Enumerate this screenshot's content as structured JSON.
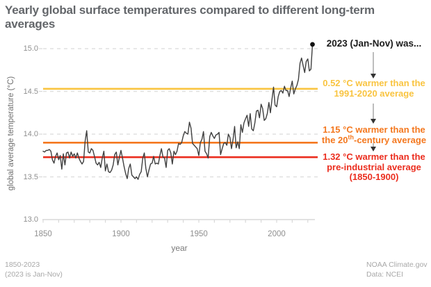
{
  "title": "Yearly global surface temperatures compared to different long-term averages",
  "colors": {
    "yellow": "#f9c440",
    "orange": "#f4781f",
    "red": "#eb2d1e",
    "data_line": "#3f3f3f",
    "end_dot": "#111111",
    "gridline": "#e0e0e0",
    "axis": "#d8d8d8",
    "arrow_shaft": "#999999",
    "arrow_head": "#333333"
  },
  "chart_data": {
    "type": "line",
    "title": "Yearly global surface temperatures compared to different long-term averages",
    "xlabel": "year",
    "ylabel": "global average temperature (°C)",
    "xlim": [
      1850,
      2023
    ],
    "ylim": [
      13.0,
      15.0
    ],
    "x_ticks": [
      1850,
      1900,
      1950,
      2000
    ],
    "x_minor_tick_step": 10,
    "y_ticks": [
      13.0,
      13.5,
      14.0,
      14.5,
      15.0
    ],
    "grid": "horizontal dashed",
    "series": [
      {
        "name": "yearly global average surface temperature",
        "x_start": 1850,
        "x_end": 2023,
        "x_step": 1,
        "values": [
          13.8,
          13.79,
          13.81,
          13.81,
          13.82,
          13.8,
          13.7,
          13.66,
          13.74,
          13.78,
          13.7,
          13.75,
          13.59,
          13.77,
          13.64,
          13.78,
          13.79,
          13.72,
          13.79,
          13.74,
          13.77,
          13.72,
          13.78,
          13.72,
          13.68,
          13.65,
          13.68,
          13.92,
          14.04,
          13.79,
          13.78,
          13.83,
          13.81,
          13.74,
          13.66,
          13.64,
          13.67,
          13.61,
          13.72,
          13.8,
          13.57,
          13.65,
          13.56,
          13.55,
          13.58,
          13.64,
          13.76,
          13.79,
          13.64,
          13.73,
          13.81,
          13.72,
          13.62,
          13.54,
          13.48,
          13.6,
          13.65,
          13.52,
          13.5,
          13.48,
          13.5,
          13.47,
          13.53,
          13.56,
          13.72,
          13.78,
          13.6,
          13.5,
          13.58,
          13.65,
          13.66,
          13.74,
          13.65,
          13.66,
          13.65,
          13.75,
          13.83,
          13.73,
          13.72,
          13.61,
          13.81,
          13.83,
          13.78,
          13.65,
          13.8,
          13.76,
          13.8,
          13.89,
          13.88,
          13.9,
          13.98,
          14.03,
          14.01,
          14.0,
          14.14,
          14.07,
          13.89,
          13.87,
          13.85,
          13.83,
          13.75,
          13.9,
          13.94,
          14.03,
          13.8,
          13.77,
          13.72,
          13.97,
          14.02,
          13.98,
          13.95,
          13.99,
          14.0,
          14.02,
          13.76,
          13.83,
          13.89,
          13.9,
          13.87,
          14.0,
          13.96,
          13.83,
          13.94,
          14.09,
          13.84,
          13.91,
          13.83,
          14.11,
          14.02,
          14.13,
          14.18,
          14.22,
          14.09,
          14.24,
          14.06,
          14.04,
          14.13,
          14.27,
          14.28,
          14.19,
          14.35,
          14.3,
          14.16,
          14.18,
          14.24,
          14.37,
          14.25,
          14.41,
          14.55,
          14.34,
          14.32,
          14.44,
          14.5,
          14.51,
          14.48,
          14.56,
          14.51,
          14.51,
          14.44,
          14.54,
          14.62,
          14.47,
          14.53,
          14.57,
          14.64,
          14.83,
          14.89,
          14.8,
          14.72,
          14.85,
          14.88,
          14.74,
          14.76,
          15.05
        ]
      }
    ],
    "reference_lines": [
      {
        "name": "1991-2020 average",
        "value": 14.53,
        "color": "#f9c440"
      },
      {
        "name": "20th-century average",
        "value": 13.9,
        "color": "#f4781f"
      },
      {
        "name": "pre-industrial average (1850-1900)",
        "value": 13.73,
        "color": "#eb2d1e"
      }
    ],
    "end_point": {
      "year": 2023,
      "value": 15.05
    }
  },
  "annotation": {
    "heading": "2023 (Jan-Nov) was...",
    "delta_1991_2020": {
      "line1": "0.52 °C warmer than the",
      "line2": "1991-2020 average"
    },
    "delta_20th_century": {
      "line1": "1.15 °C warmer than the",
      "line2_pre": "the 20",
      "line2_sup": "th",
      "line2_post": "-century average"
    },
    "delta_preindustrial": {
      "line1": "1.32 °C warmer than the",
      "line2": "pre-industrial average",
      "line3": "(1850-1900)"
    }
  },
  "footer": {
    "left_line1": "1850-2023",
    "left_line2": "(2023 is Jan-Nov)",
    "right_line1": "NOAA Climate.gov",
    "right_line2": "Data: NCEI"
  }
}
